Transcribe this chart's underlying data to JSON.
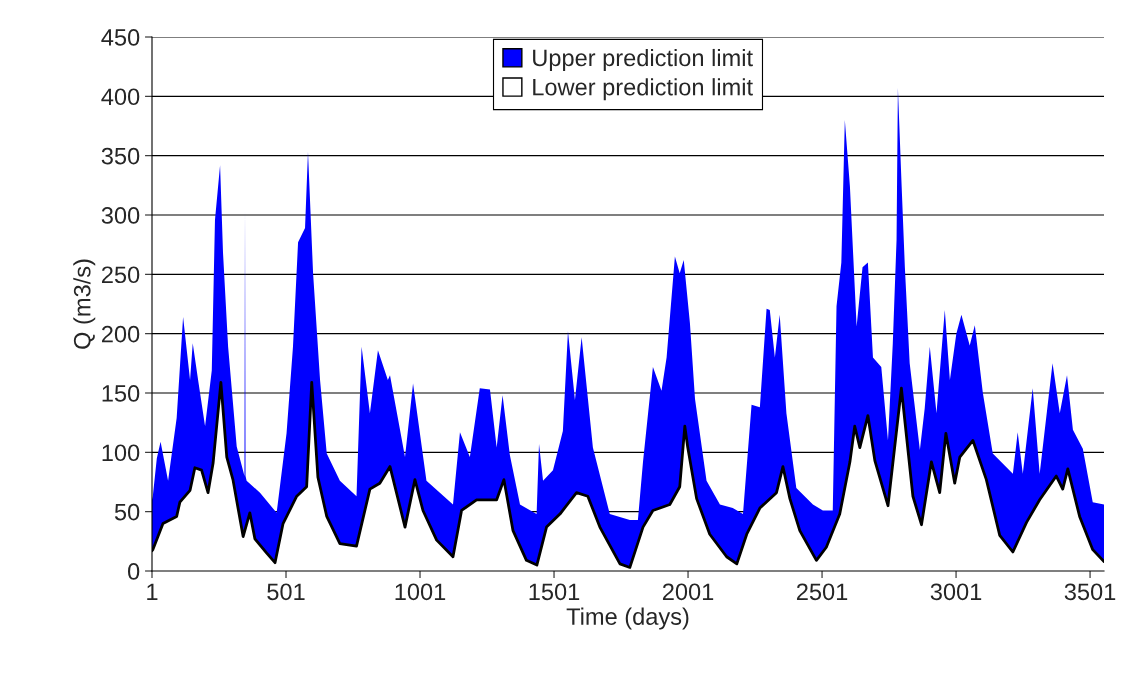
{
  "chart_data": {
    "type": "area",
    "xlabel": "Time (days)",
    "ylabel": "Q (m3/s)",
    "xlim": [
      1,
      3553
    ],
    "xticks": [
      1,
      501,
      1001,
      1501,
      2001,
      2501,
      3001,
      3501
    ],
    "ylim": [
      0,
      450
    ],
    "yticks": [
      0,
      50,
      100,
      150,
      200,
      250,
      300,
      350,
      400,
      450
    ],
    "grid": "y",
    "legend": "top",
    "series": [
      {
        "name": "Upper prediction limit",
        "color": "#0000ff",
        "x": [
          1,
          4,
          19,
          33,
          61,
          93,
          117,
          143,
          153,
          173,
          199,
          224,
          236,
          255,
          266,
          285,
          317,
          346,
          348,
          350,
          354,
          404,
          466,
          503,
          527,
          546,
          572,
          583,
          602,
          628,
          653,
          702,
          764,
          783,
          814,
          844,
          881,
          889,
          945,
          975,
          1025,
          1124,
          1150,
          1187,
          1224,
          1262,
          1287,
          1309,
          1336,
          1374,
          1436,
          1445,
          1460,
          1497,
          1534,
          1553,
          1579,
          1604,
          1646,
          1709,
          1784,
          1814,
          1833,
          1870,
          1902,
          1921,
          1952,
          1970,
          1985,
          2008,
          2027,
          2070,
          2120,
          2168,
          2206,
          2238,
          2269,
          2294,
          2306,
          2325,
          2343,
          2368,
          2405,
          2467,
          2504,
          2541,
          2555,
          2573,
          2586,
          2605,
          2630,
          2652,
          2672,
          2691,
          2722,
          2747,
          2765,
          2779,
          2784,
          2797,
          2810,
          2828,
          2866,
          2884,
          2903,
          2928,
          2959,
          2978,
          3002,
          3021,
          3052,
          3071,
          3101,
          3138,
          3213,
          3231,
          3250,
          3287,
          3313,
          3361,
          3388,
          3415,
          3437,
          3474,
          3511,
          3553
        ],
        "values": [
          60,
          63,
          95,
          109,
          76,
          129,
          214,
          161,
          192,
          161,
          122,
          169,
          296,
          342,
          268,
          189,
          105,
          80,
          304,
          80,
          76,
          66,
          49,
          116,
          189,
          277,
          289,
          353,
          251,
          161,
          99,
          76,
          63,
          189,
          133,
          186,
          161,
          165,
          96,
          158,
          76,
          56,
          117,
          96,
          154,
          153,
          104,
          148,
          98,
          56,
          48,
          107,
          76,
          85,
          118,
          202,
          144,
          197,
          104,
          48,
          43,
          43,
          92,
          172,
          152,
          180,
          265,
          251,
          262,
          209,
          145,
          76,
          56,
          53,
          48,
          140,
          138,
          221,
          220,
          180,
          216,
          133,
          70,
          56,
          51,
          51,
          223,
          260,
          380,
          324,
          206,
          256,
          260,
          180,
          172,
          110,
          192,
          279,
          407,
          330,
          256,
          175,
          102,
          137,
          189,
          133,
          220,
          161,
          200,
          216,
          190,
          207,
          150,
          99,
          82,
          117,
          82,
          154,
          82,
          175,
          133,
          165,
          119,
          103,
          58,
          56
        ]
      },
      {
        "name": "Lower prediction limit",
        "color": "#ffffff",
        "x": [
          1,
          4,
          42,
          93,
          105,
          143,
          161,
          186,
          210,
          229,
          258,
          280,
          303,
          341,
          366,
          385,
          429,
          460,
          490,
          541,
          578,
          597,
          620,
          653,
          702,
          764,
          814,
          851,
          889,
          945,
          982,
          1012,
          1063,
          1124,
          1156,
          1212,
          1287,
          1314,
          1348,
          1398,
          1437,
          1473,
          1523,
          1585,
          1627,
          1672,
          1747,
          1784,
          1833,
          1870,
          1933,
          1970,
          1989,
          2000,
          2033,
          2082,
          2145,
          2183,
          2220,
          2269,
          2331,
          2355,
          2381,
          2418,
          2480,
          2517,
          2567,
          2605,
          2623,
          2642,
          2672,
          2698,
          2747,
          2797,
          2840,
          2872,
          2909,
          2940,
          2963,
          2996,
          3015,
          3064,
          3114,
          3164,
          3213,
          3264,
          3313,
          3375,
          3399,
          3418,
          3462,
          3511,
          3553
        ],
        "values": [
          17,
          18,
          40,
          46,
          58,
          68,
          87,
          85,
          66,
          91,
          159,
          96,
          77,
          29,
          49,
          27,
          15,
          7,
          40,
          63,
          71,
          159,
          79,
          46,
          23,
          21,
          69,
          74,
          88,
          37,
          77,
          51,
          26,
          12,
          51,
          60,
          60,
          77,
          34,
          9,
          5,
          37,
          48,
          66,
          63,
          37,
          6,
          3,
          37,
          51,
          56,
          71,
          122,
          104,
          61,
          31,
          12,
          6,
          31,
          53,
          66,
          88,
          61,
          34,
          9,
          20,
          48,
          92,
          122,
          104,
          131,
          93,
          55,
          154,
          63,
          39,
          92,
          66,
          116,
          74,
          96,
          110,
          77,
          30,
          16,
          41,
          60,
          80,
          69,
          86,
          46,
          18,
          8
        ]
      }
    ]
  }
}
